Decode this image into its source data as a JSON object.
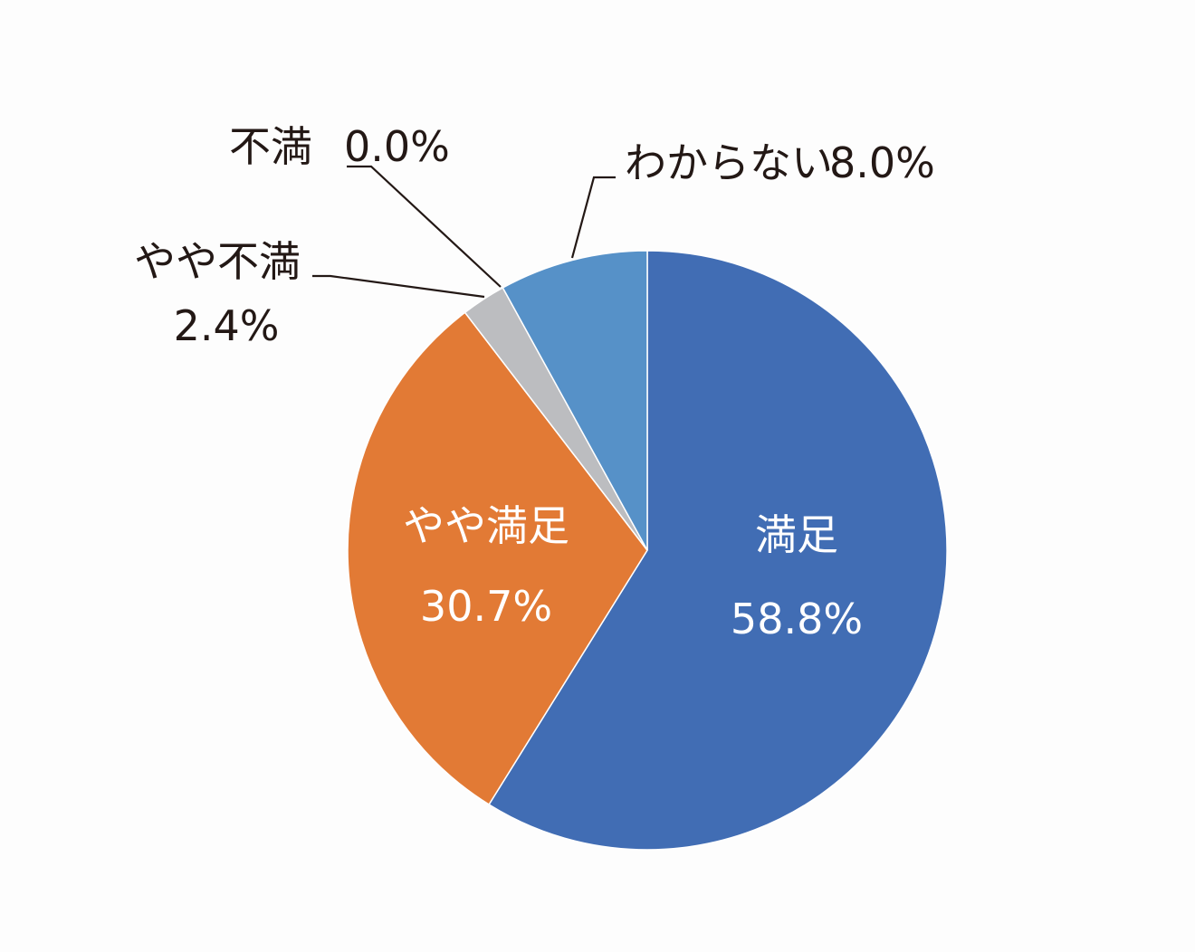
{
  "chart_data": {
    "type": "pie",
    "start_angle_deg": 0,
    "direction": "clockwise",
    "slices": [
      {
        "label": "満足",
        "value": 58.8,
        "value_text": "58.8%",
        "color": "#416db4",
        "label_position": "inside"
      },
      {
        "label": "やや満足",
        "value": 30.7,
        "value_text": "30.7%",
        "color": "#e27a35",
        "label_position": "inside"
      },
      {
        "label": "不満",
        "value": 0.0,
        "value_text": "0.0%",
        "color": "#a5a5a5",
        "label_position": "outside"
      },
      {
        "label": "やや不満",
        "value": 2.4,
        "value_text": "2.4%",
        "color": "#bcbdc0",
        "label_position": "outside"
      },
      {
        "label": "わからない",
        "value": 8.0,
        "value_text": "8.0%",
        "color": "#5691c8",
        "label_position": "outside"
      }
    ],
    "title": "",
    "legend": "none"
  }
}
